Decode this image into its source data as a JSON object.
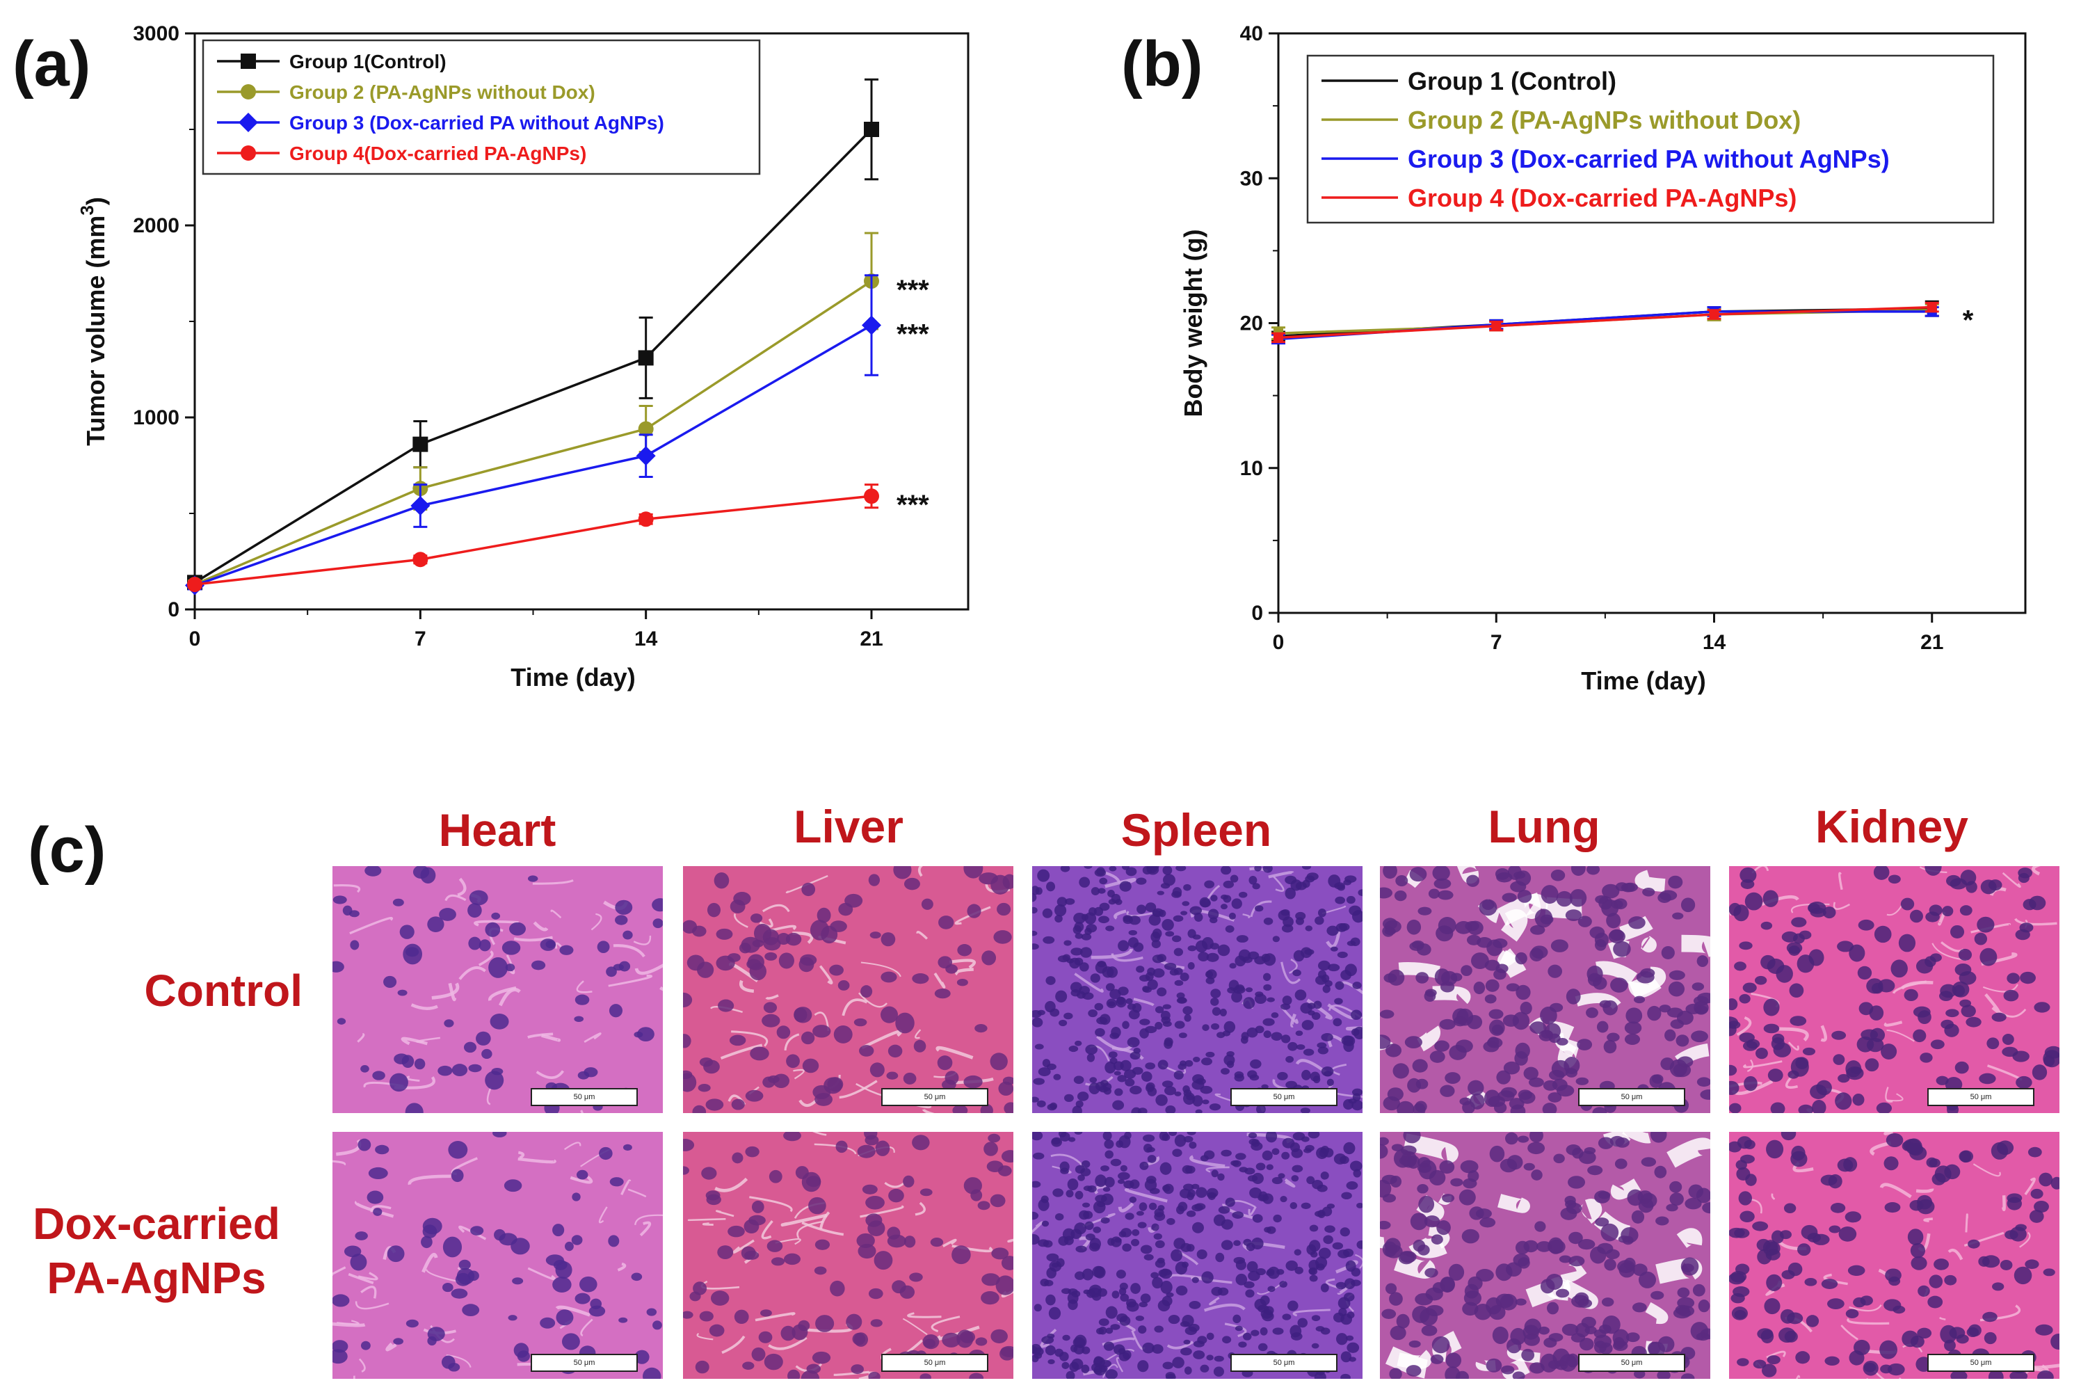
{
  "panel_labels": {
    "a": "(a)",
    "b": "(b)",
    "c": "(c)"
  },
  "chart_data": [
    {
      "type": "line",
      "panel": "(a)",
      "title": "",
      "xlabel": "Time (day)",
      "ylabel_main": "Tumor volume (mm",
      "ylabel_sup": "3",
      "ylabel_close": ")",
      "x": [
        0,
        7,
        14,
        21
      ],
      "xlim": [
        0,
        24
      ],
      "ylim": [
        0,
        3000
      ],
      "xticks": [
        "0",
        "7",
        "14",
        "21"
      ],
      "yticks": [
        "0",
        "1000",
        "2000",
        "3000"
      ],
      "legend_position": "top-left",
      "series": [
        {
          "name": "Group 1(Control)",
          "color": "#111111",
          "marker": "square",
          "values": [
            140,
            860,
            1310,
            2500
          ],
          "errors": [
            20,
            120,
            210,
            260
          ]
        },
        {
          "name": "Group 2 (PA-AgNPs without Dox)",
          "color": "#9a9a2a",
          "marker": "circle",
          "values": [
            130,
            630,
            940,
            1710
          ],
          "errors": [
            20,
            110,
            120,
            250
          ]
        },
        {
          "name": "Group 3 (Dox-carried PA without AgNPs)",
          "color": "#1a1aee",
          "marker": "diamond",
          "values": [
            125,
            540,
            800,
            1480
          ],
          "errors": [
            20,
            110,
            110,
            260
          ]
        },
        {
          "name": "Group 4(Dox-carried PA-AgNPs)",
          "color": "#ee1c1c",
          "marker": "circle",
          "values": [
            130,
            260,
            470,
            590
          ],
          "errors": [
            15,
            20,
            25,
            60
          ]
        }
      ],
      "annotations": [
        {
          "text": "***",
          "x": 21,
          "y": 1710
        },
        {
          "text": "***",
          "x": 21,
          "y": 1480
        },
        {
          "text": "***",
          "x": 21,
          "y": 590
        }
      ]
    },
    {
      "type": "line",
      "panel": "(b)",
      "title": "",
      "xlabel": "Time (day)",
      "ylabel": "Body weight (g)",
      "x": [
        0,
        7,
        14,
        21
      ],
      "xlim": [
        0,
        24
      ],
      "ylim": [
        0,
        40
      ],
      "xticks": [
        "0",
        "7",
        "14",
        "21"
      ],
      "yticks": [
        "0",
        "10",
        "20",
        "30",
        "40"
      ],
      "legend_position": "top",
      "series": [
        {
          "name": "Group 1 (Control)",
          "color": "#111111",
          "values": [
            19.1,
            19.9,
            20.8,
            21.0
          ],
          "errors": [
            0.3,
            0.3,
            0.3,
            0.5
          ]
        },
        {
          "name": "Group 2 (PA-AgNPs without Dox)",
          "color": "#9a9a2a",
          "values": [
            19.3,
            19.8,
            20.6,
            20.9
          ],
          "errors": [
            0.4,
            0.3,
            0.4,
            0.4
          ]
        },
        {
          "name": "Group 3 (Dox-carried PA without AgNPs)",
          "color": "#1a1aee",
          "values": [
            18.9,
            19.9,
            20.8,
            20.8
          ],
          "errors": [
            0.3,
            0.3,
            0.3,
            0.3
          ]
        },
        {
          "name": "Group 4 (Dox-carried PA-AgNPs)",
          "color": "#ee1c1c",
          "values": [
            19.0,
            19.8,
            20.6,
            21.1
          ],
          "errors": [
            0.3,
            0.3,
            0.3,
            0.3
          ]
        }
      ],
      "annotations": [
        {
          "text": "*",
          "x": 21,
          "y": 21.0
        }
      ]
    }
  ],
  "histology": {
    "organs": [
      "Heart",
      "Liver",
      "Spleen",
      "Lung",
      "Kidney"
    ],
    "rows": [
      "Control",
      "Dox-carried PA-AgNPs"
    ],
    "scale_bar": "50 μm"
  }
}
